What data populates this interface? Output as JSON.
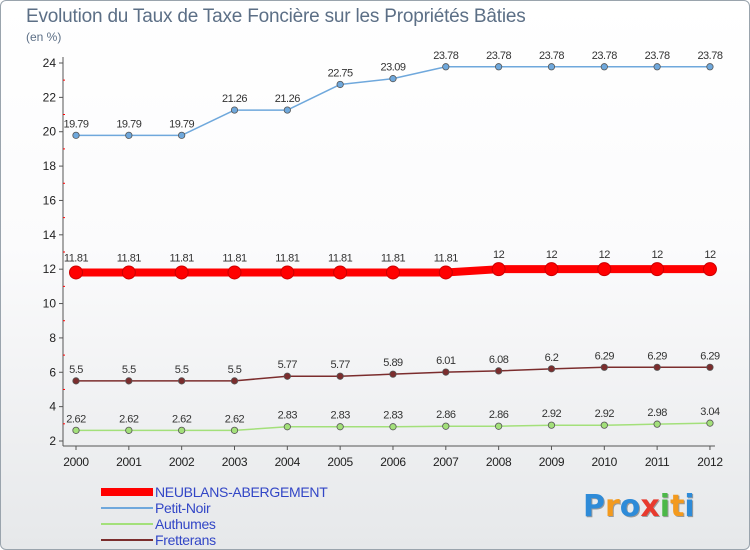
{
  "chart_data": {
    "type": "line",
    "title": "Evolution du Taux de Taxe Foncière sur les Propriétés Bâties",
    "ylabel": "(en %)",
    "xlabel": "",
    "ylim": [
      2,
      24
    ],
    "yticks": [
      "2",
      "4",
      "6",
      "8",
      "10",
      "12",
      "14",
      "16",
      "18",
      "20",
      "22",
      "24"
    ],
    "categories": [
      "2000",
      "2001",
      "2002",
      "2003",
      "2004",
      "2005",
      "2006",
      "2007",
      "2008",
      "2009",
      "2010",
      "2011",
      "2012"
    ],
    "series": [
      {
        "name": "NEUBLANS-ABERGEMENT",
        "color": "#ff0000",
        "values": [
          11.81,
          11.81,
          11.81,
          11.81,
          11.81,
          11.81,
          11.81,
          11.81,
          12,
          12,
          12,
          12,
          12
        ],
        "labels": [
          "11.81",
          "11.81",
          "11.81",
          "11.81",
          "11.81",
          "11.81",
          "11.81",
          "11.81",
          "12",
          "12",
          "12",
          "12",
          "12"
        ]
      },
      {
        "name": "Petit-Noir",
        "color": "#6fa8dc",
        "values": [
          19.79,
          19.79,
          19.79,
          21.26,
          21.26,
          22.75,
          23.09,
          23.78,
          23.78,
          23.78,
          23.78,
          23.78,
          23.78
        ],
        "labels": [
          "19.79",
          "19.79",
          "19.79",
          "21.26",
          "21.26",
          "22.75",
          "23.09",
          "23.78",
          "23.78",
          "23.78",
          "23.78",
          "23.78",
          "23.78"
        ]
      },
      {
        "name": "Authumes",
        "color": "#a3e07a",
        "values": [
          2.62,
          2.62,
          2.62,
          2.62,
          2.83,
          2.83,
          2.83,
          2.86,
          2.86,
          2.92,
          2.92,
          2.98,
          3.04
        ],
        "labels": [
          "2.62",
          "2.62",
          "2.62",
          "2.62",
          "2.83",
          "2.83",
          "2.83",
          "2.86",
          "2.86",
          "2.92",
          "2.92",
          "2.98",
          "3.04"
        ]
      },
      {
        "name": "Fretterans",
        "color": "#7b2d2d",
        "values": [
          5.5,
          5.5,
          5.5,
          5.5,
          5.77,
          5.77,
          5.89,
          6.01,
          6.08,
          6.2,
          6.29,
          6.29,
          6.29
        ],
        "labels": [
          "5.5",
          "5.5",
          "5.5",
          "5.5",
          "5.77",
          "5.77",
          "5.89",
          "6.01",
          "6.08",
          "6.2",
          "6.29",
          "6.29",
          "6.29"
        ]
      }
    ],
    "legend_position": "bottom-left"
  },
  "logo": {
    "letters": [
      "P",
      "r",
      "o",
      "x",
      "i",
      "t",
      "i"
    ],
    "colors": [
      "#2e8bd8",
      "#f39a1e",
      "#2e8bd8",
      "#e83a2e",
      "#4cb848",
      "#f39a1e",
      "#2e8bd8"
    ]
  }
}
